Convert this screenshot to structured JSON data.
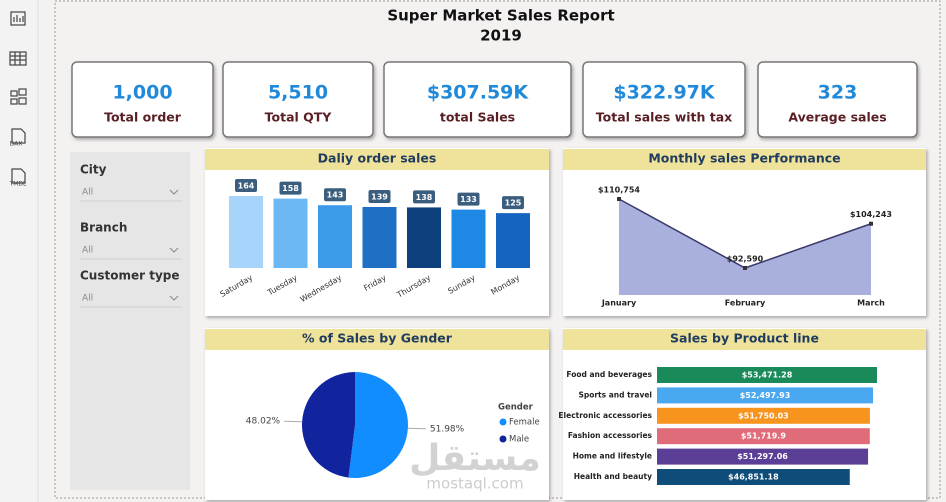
{
  "header": {
    "title": "Super Market Sales Report",
    "year": "2019"
  },
  "sidebar": {
    "dax": "DAX",
    "tmdl": "TMDL"
  },
  "kpis": [
    {
      "value": "1,000",
      "label": "Total order"
    },
    {
      "value": "5,510",
      "label": "Total QTY"
    },
    {
      "value": "$307.59K",
      "label": "total Sales"
    },
    {
      "value": "$322.97K",
      "label": "Total sales with tax"
    },
    {
      "value": "323",
      "label": "Average sales"
    }
  ],
  "filters": [
    {
      "label": "City",
      "value": "All"
    },
    {
      "label": "Branch",
      "value": "All"
    },
    {
      "label": "Customer type",
      "value": "All"
    }
  ],
  "watermark": {
    "arabic": "مستقل",
    "latin": "mostaql.com"
  },
  "chart_data": [
    {
      "type": "bar",
      "title": "Daliy order sales",
      "categories": [
        "Saturday",
        "Tuesday",
        "Wednesday",
        "Friday",
        "Thursday",
        "Sunday",
        "Monday"
      ],
      "values": [
        164,
        158,
        143,
        139,
        138,
        133,
        125
      ],
      "colors": [
        "#a6d4fa",
        "#6cb8f5",
        "#3d9be9",
        "#1f6fc5",
        "#0d3f7a",
        "#1e88e5",
        "#1565c0"
      ]
    },
    {
      "type": "area",
      "title": "Monthly sales Performance",
      "categories": [
        "January",
        "February",
        "March"
      ],
      "values": [
        110754,
        92590,
        104243
      ],
      "value_labels": [
        "$110,754",
        "$92,590",
        "$104,243"
      ],
      "color": "#aab0dd",
      "line_color": "#3a3a6a"
    },
    {
      "type": "pie",
      "title": "% of Sales by Gender",
      "legend_title": "Gender",
      "categories": [
        "Female",
        "Male"
      ],
      "values": [
        51.98,
        48.02
      ],
      "value_labels": [
        "51.98%",
        "48.02%"
      ],
      "colors": [
        "#118dff",
        "#12239e"
      ]
    },
    {
      "type": "hbar",
      "title": "Sales by Product line",
      "categories": [
        "Food and beverages",
        "Sports and travel",
        "Electronic accessories",
        "Fashion accessories",
        "Home and lifestyle",
        "Health and beauty"
      ],
      "values": [
        53471.28,
        52497.93,
        51750.03,
        51719.9,
        51297.06,
        46851.18
      ],
      "value_labels": [
        "$53,471.28",
        "$52,497.93",
        "$51,750.03",
        "$51,719.9",
        "$51,297.06",
        "$46,851.18"
      ],
      "colors": [
        "#1a8a5a",
        "#4aa8f0",
        "#f7941d",
        "#e06c7a",
        "#5b3f96",
        "#0e4c7a"
      ]
    }
  ]
}
